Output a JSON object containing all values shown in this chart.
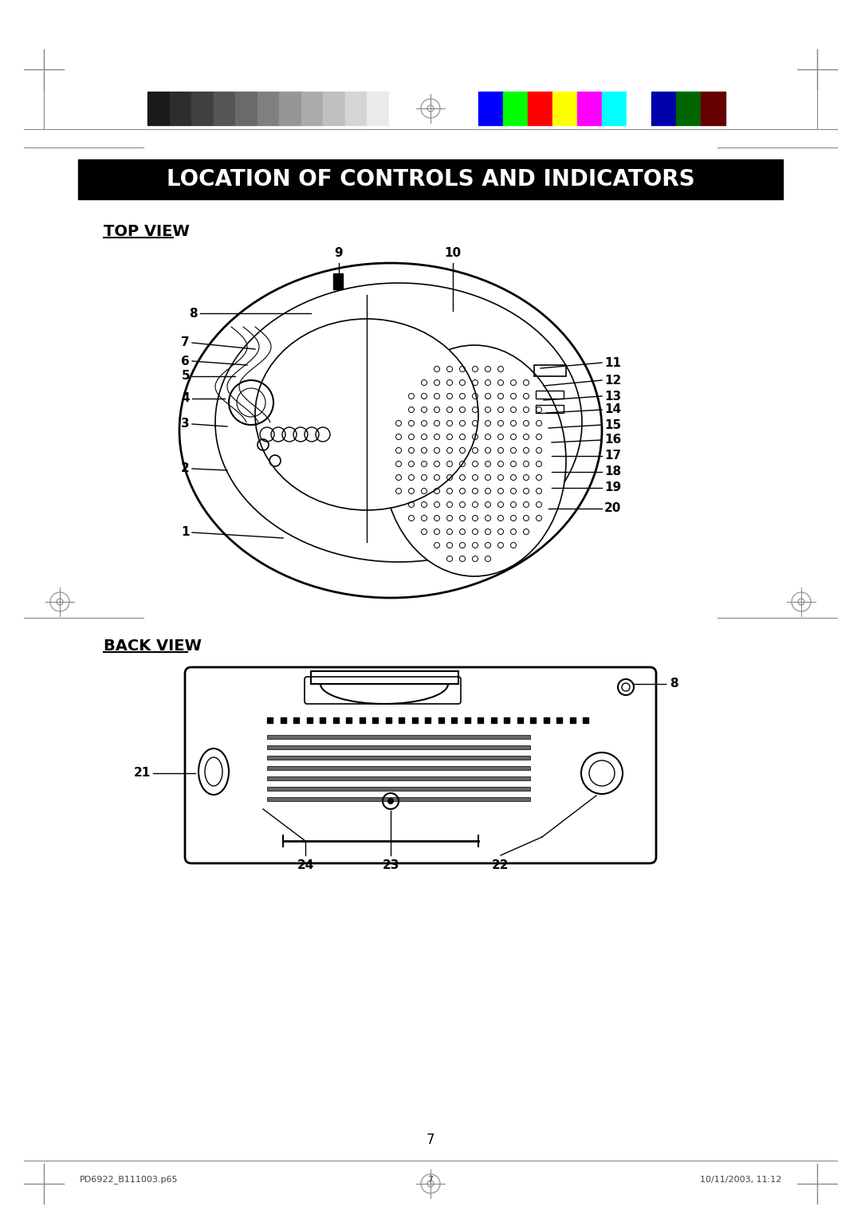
{
  "title": "LOCATION OF CONTROLS AND INDICATORS",
  "title_bg": "#000000",
  "title_color": "#ffffff",
  "top_view_label": "TOP VIEW",
  "back_view_label": "BACK VIEW",
  "page_number": "7",
  "footer_left": "PD6922_B111003.p65",
  "footer_center": "7",
  "footer_right": "10/11/2003, 11:12",
  "bg_color": "#ffffff",
  "grayscale_bars": [
    "#1a1a1a",
    "#2d2d2d",
    "#404040",
    "#555555",
    "#6a6a6a",
    "#808080",
    "#969696",
    "#ababab",
    "#c0c0c0",
    "#d5d5d5",
    "#eaeaea",
    "#ffffff"
  ],
  "color_bars": [
    "#0000ff",
    "#00ff00",
    "#ff0000",
    "#ffff00",
    "#ff00ff",
    "#00ffff",
    "#ffffff",
    "#0000aa",
    "#006600",
    "#660000"
  ]
}
